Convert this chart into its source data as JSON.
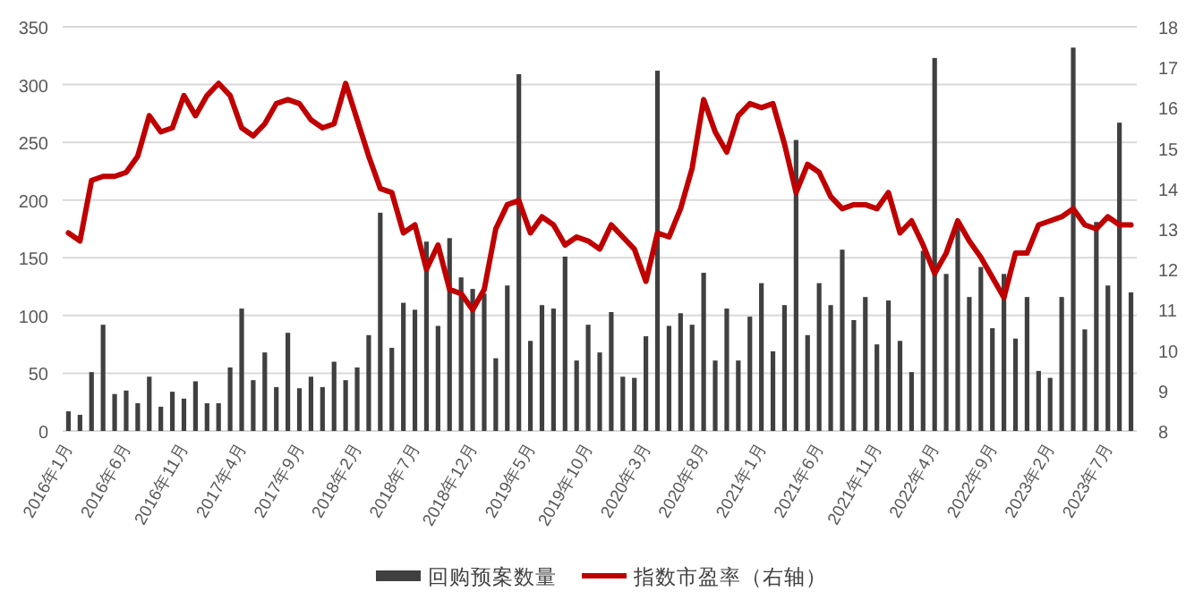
{
  "chart_data": {
    "type": "bar",
    "categories": [
      "2016年1月",
      null,
      null,
      null,
      null,
      "2016年6月",
      null,
      null,
      null,
      null,
      "2016年11月",
      null,
      null,
      null,
      null,
      "2017年4月",
      null,
      null,
      null,
      null,
      "2017年9月",
      null,
      null,
      null,
      null,
      "2018年2月",
      null,
      null,
      null,
      null,
      "2018年7月",
      null,
      null,
      null,
      null,
      "2018年12月",
      null,
      null,
      null,
      null,
      "2019年5月",
      null,
      null,
      null,
      null,
      "2019年10月",
      null,
      null,
      null,
      null,
      "2020年3月",
      null,
      null,
      null,
      null,
      "2020年8月",
      null,
      null,
      null,
      null,
      "2021年1月",
      null,
      null,
      null,
      null,
      "2021年6月",
      null,
      null,
      null,
      null,
      "2021年11月",
      null,
      null,
      null,
      null,
      "2022年4月",
      null,
      null,
      null,
      null,
      "2022年9月",
      null,
      null,
      null,
      null,
      "2023年2月",
      null,
      null,
      null,
      null,
      "2023年7月",
      null,
      null
    ],
    "series": [
      {
        "name": "回购预案数量",
        "color": "#404040",
        "values": [
          17,
          14,
          51,
          92,
          32,
          35,
          24,
          47,
          21,
          34,
          28,
          43,
          24,
          24,
          55,
          106,
          44,
          68,
          38,
          85,
          37,
          47,
          38,
          60,
          44,
          55,
          83,
          189,
          72,
          111,
          105,
          164,
          91,
          167,
          133,
          123,
          119,
          63,
          126,
          309,
          78,
          109,
          106,
          151,
          61,
          92,
          68,
          103,
          47,
          46,
          82,
          312,
          91,
          102,
          92,
          137,
          61,
          106,
          61,
          99,
          128,
          69,
          109,
          252,
          83,
          128,
          109,
          157,
          96,
          116,
          75,
          113,
          78,
          51,
          156,
          323,
          136,
          181,
          116,
          142,
          89,
          136,
          80,
          116,
          52,
          46,
          116,
          332,
          88,
          181,
          126,
          267,
          120
        ]
      },
      {
        "name": "指数市盈率（右轴）",
        "type": "line",
        "axis": "y2",
        "color": "#c00000",
        "values": [
          12.9,
          12.7,
          14.2,
          14.3,
          14.3,
          14.4,
          14.8,
          15.8,
          15.4,
          15.5,
          16.3,
          15.8,
          16.3,
          16.6,
          16.3,
          15.5,
          15.3,
          15.6,
          16.1,
          16.2,
          16.1,
          15.7,
          15.5,
          15.6,
          16.6,
          15.7,
          14.8,
          14.0,
          13.9,
          12.9,
          13.1,
          12.0,
          12.6,
          11.5,
          11.4,
          11.0,
          11.5,
          13.0,
          13.6,
          13.7,
          12.9,
          13.3,
          13.1,
          12.6,
          12.8,
          12.7,
          12.5,
          13.1,
          12.8,
          12.5,
          11.7,
          12.9,
          12.8,
          13.5,
          14.5,
          16.2,
          15.4,
          14.9,
          15.8,
          16.1,
          16.0,
          16.1,
          15.1,
          13.9,
          14.6,
          14.4,
          13.8,
          13.5,
          13.6,
          13.6,
          13.5,
          13.9,
          12.9,
          13.2,
          12.6,
          11.9,
          12.4,
          13.2,
          12.7,
          12.3,
          11.8,
          11.3,
          12.4,
          12.4,
          13.1,
          13.2,
          13.3,
          13.5,
          13.1,
          13.0,
          13.3,
          13.1,
          13.1
        ]
      }
    ],
    "ylim": [
      0,
      350
    ],
    "yticks": [
      0,
      50,
      100,
      150,
      200,
      250,
      300,
      350
    ],
    "y2lim": [
      8,
      18
    ],
    "y2ticks": [
      8,
      9,
      10,
      11,
      12,
      13,
      14,
      15,
      16,
      17,
      18
    ],
    "grid": "y",
    "legend": "bottom"
  }
}
